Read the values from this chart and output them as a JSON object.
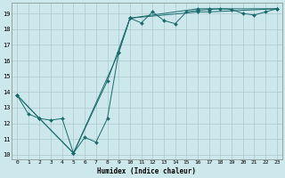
{
  "xlabel": "Humidex (Indice chaleur)",
  "background_color": "#cce8ec",
  "grid_color": "#aac8cc",
  "line_color": "#1a6b6b",
  "xlim": [
    -0.5,
    23.5
  ],
  "ylim": [
    9.7,
    19.7
  ],
  "yticks": [
    10,
    11,
    12,
    13,
    14,
    15,
    16,
    17,
    18,
    19
  ],
  "xticks": [
    0,
    1,
    2,
    3,
    4,
    5,
    6,
    7,
    8,
    9,
    10,
    11,
    12,
    13,
    14,
    15,
    16,
    17,
    18,
    19,
    20,
    21,
    22,
    23
  ],
  "series": [
    {
      "x": [
        0,
        1,
        2,
        3,
        4,
        5,
        6,
        7,
        8,
        9,
        10,
        11,
        12,
        13,
        14,
        15,
        16,
        17,
        18,
        19,
        20,
        21,
        22,
        23
      ],
      "y": [
        13.8,
        12.6,
        12.3,
        12.2,
        12.3,
        10.1,
        11.1,
        10.8,
        12.3,
        16.5,
        18.7,
        18.4,
        19.1,
        18.55,
        18.35,
        19.1,
        19.2,
        19.25,
        19.3,
        19.25,
        19.0,
        18.9,
        19.1,
        19.3
      ]
    },
    {
      "x": [
        0,
        2,
        5,
        9,
        10,
        16,
        17,
        23
      ],
      "y": [
        13.8,
        12.3,
        10.1,
        16.5,
        18.7,
        19.3,
        19.3,
        19.3
      ]
    },
    {
      "x": [
        0,
        2,
        5,
        8,
        10,
        16,
        17,
        23
      ],
      "y": [
        13.8,
        12.3,
        10.1,
        14.7,
        18.7,
        19.1,
        19.1,
        19.3
      ]
    }
  ]
}
